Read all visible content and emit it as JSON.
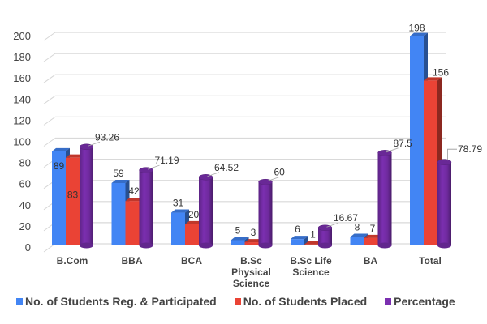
{
  "chart_data": {
    "type": "bar",
    "style": "3d-clustered-column",
    "title": "",
    "xlabel": "",
    "ylabel": "",
    "ylim": [
      0,
      200
    ],
    "yticks": [
      0,
      20,
      40,
      60,
      80,
      100,
      120,
      140,
      160,
      180,
      200
    ],
    "grid": true,
    "legend_position": "bottom",
    "categories": [
      [
        "B.Com"
      ],
      [
        "BBA"
      ],
      [
        "BCA"
      ],
      [
        "B.Sc",
        "Physical",
        "Science"
      ],
      [
        "B.Sc Life",
        "Science"
      ],
      [
        "BA"
      ],
      [
        "Total"
      ]
    ],
    "series": [
      {
        "name": "No. of Students Reg. & Participated",
        "color": "#4285f4",
        "shape": "box",
        "values": [
          89,
          59,
          31,
          5,
          6,
          8,
          198
        ],
        "labels": [
          "89",
          "59",
          "31",
          "5",
          "6",
          "8",
          "198"
        ]
      },
      {
        "name": "No. of Students Placed",
        "color": "#ea4335",
        "shape": "box",
        "values": [
          83,
          42,
          20,
          3,
          1,
          7,
          156
        ],
        "labels": [
          "83",
          "42",
          "20",
          "3",
          "1",
          "7",
          "156"
        ]
      },
      {
        "name": "Percentage",
        "color": "#7b2fb0",
        "shape": "cylinder",
        "values": [
          93.26,
          71.19,
          64.52,
          60,
          16.67,
          87.5,
          78.79
        ],
        "labels": [
          "93.26",
          "71.19",
          "64.52",
          "60",
          "16.67",
          "87.5",
          "78.79"
        ]
      }
    ]
  }
}
